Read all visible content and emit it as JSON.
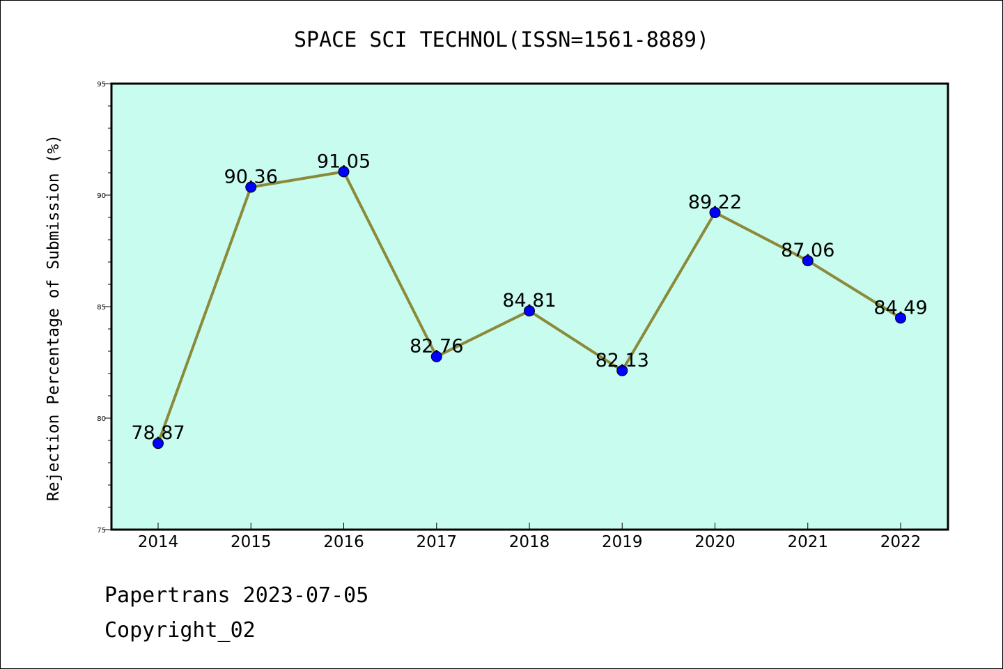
{
  "chart_data": {
    "type": "line",
    "title": "SPACE SCI TECHNOL(ISSN=1561-8889)",
    "ylabel": "Rejection Percentage of Submission (%)",
    "xlabel": "",
    "categories": [
      "2014",
      "2015",
      "2016",
      "2017",
      "2018",
      "2019",
      "2020",
      "2021",
      "2022"
    ],
    "values": [
      78.87,
      90.36,
      91.05,
      82.76,
      84.81,
      82.13,
      89.22,
      87.06,
      84.49
    ],
    "value_labels": [
      "78.87",
      "90.36",
      "91.05",
      "82.76",
      "84.81",
      "82.13",
      "89.22",
      "87.06",
      "84.49"
    ],
    "ylim": [
      75,
      95
    ],
    "yticks": [
      "75",
      "80",
      "85",
      "90",
      "95"
    ],
    "yticks_values": [
      75,
      80,
      85,
      90,
      95
    ],
    "grid": false,
    "colors": {
      "plot_background": "#c8fcee",
      "line": "#8b8a3a",
      "marker": "#0000ff"
    }
  },
  "footer": {
    "source": "Papertrans 2023-07-05",
    "copyright": "Copyright_02"
  }
}
